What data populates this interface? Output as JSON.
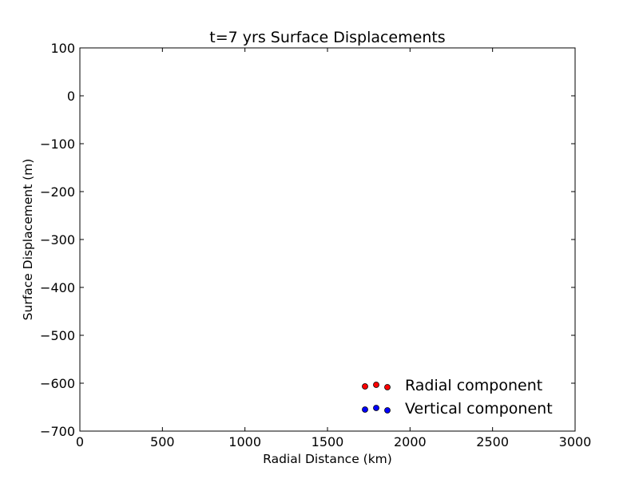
{
  "chart_data": {
    "type": "scatter",
    "title": "t=7 yrs Surface Displacements",
    "xlabel": "Radial Distance (km)",
    "ylabel": "Surface Displacement (m)",
    "xlim": [
      0,
      3000
    ],
    "ylim": [
      -700,
      100
    ],
    "x_ticks": [
      0,
      500,
      1000,
      1500,
      2000,
      2500,
      3000
    ],
    "y_ticks": [
      100,
      0,
      -100,
      -200,
      -300,
      -400,
      -500,
      -600,
      -700
    ],
    "x_tick_labels": [
      "0",
      "500",
      "1000",
      "1500",
      "2000",
      "2500",
      "3000"
    ],
    "y_tick_labels": [
      "100",
      "0",
      "−100",
      "−200",
      "−300",
      "−400",
      "−500",
      "−600",
      "−700"
    ],
    "grid": false,
    "legend_position": "lower-right",
    "series": [
      {
        "name": "Radial component",
        "color": "#ff0000",
        "values": []
      },
      {
        "name": "Vertical component",
        "color": "#0000ff",
        "values": []
      }
    ]
  }
}
